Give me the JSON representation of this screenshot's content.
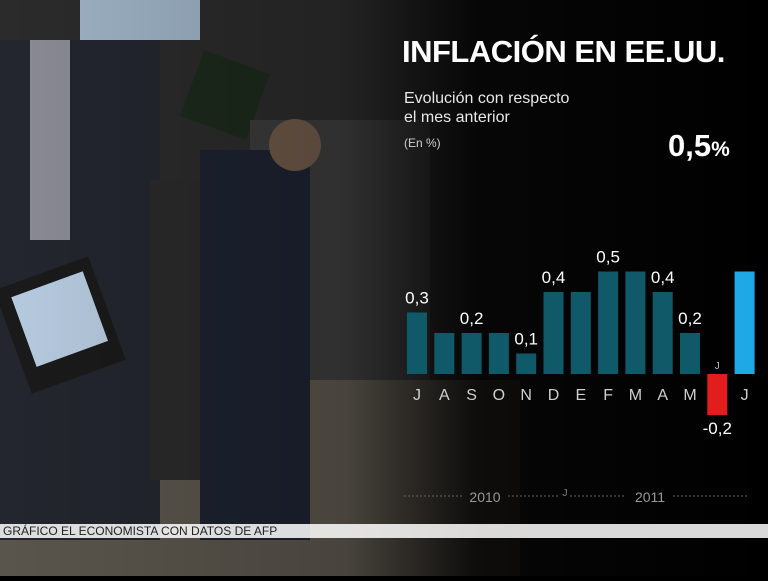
{
  "header": {
    "title": "INFLACIÓN EN EE.UU.",
    "subtitle": "Evolución con respecto\nel mes anterior",
    "unit": "(En %)",
    "highlight_value": "0,5",
    "highlight_unit": "%"
  },
  "footer": {
    "credit": "GRÁFICO EL ECONOMISTA CON DATOS DE AFP"
  },
  "colors": {
    "bar_2010": "#0f5968",
    "bar_2011": "#0f5968",
    "bar_negative": "#e21d1d",
    "bar_current": "#1ea8e6"
  },
  "chart_data": {
    "type": "bar",
    "categories": [
      "J",
      "A",
      "S",
      "O",
      "N",
      "D",
      "E",
      "F",
      "M",
      "A",
      "M",
      "J",
      "J"
    ],
    "values": [
      0.3,
      0.2,
      0.2,
      0.2,
      0.1,
      0.4,
      0.4,
      0.5,
      0.5,
      0.4,
      0.2,
      -0.2,
      0.5
    ],
    "value_labels": [
      "0,3",
      "",
      "0,2",
      "",
      "0,1",
      "0,4",
      "",
      "0,5",
      "",
      "0,4",
      "0,2",
      "-0,2",
      ""
    ],
    "years": [
      "2010",
      "2011"
    ],
    "inner_marks": [
      "J",
      "J"
    ],
    "ylim": [
      -0.2,
      0.5
    ],
    "grid": false,
    "legend": "none"
  }
}
